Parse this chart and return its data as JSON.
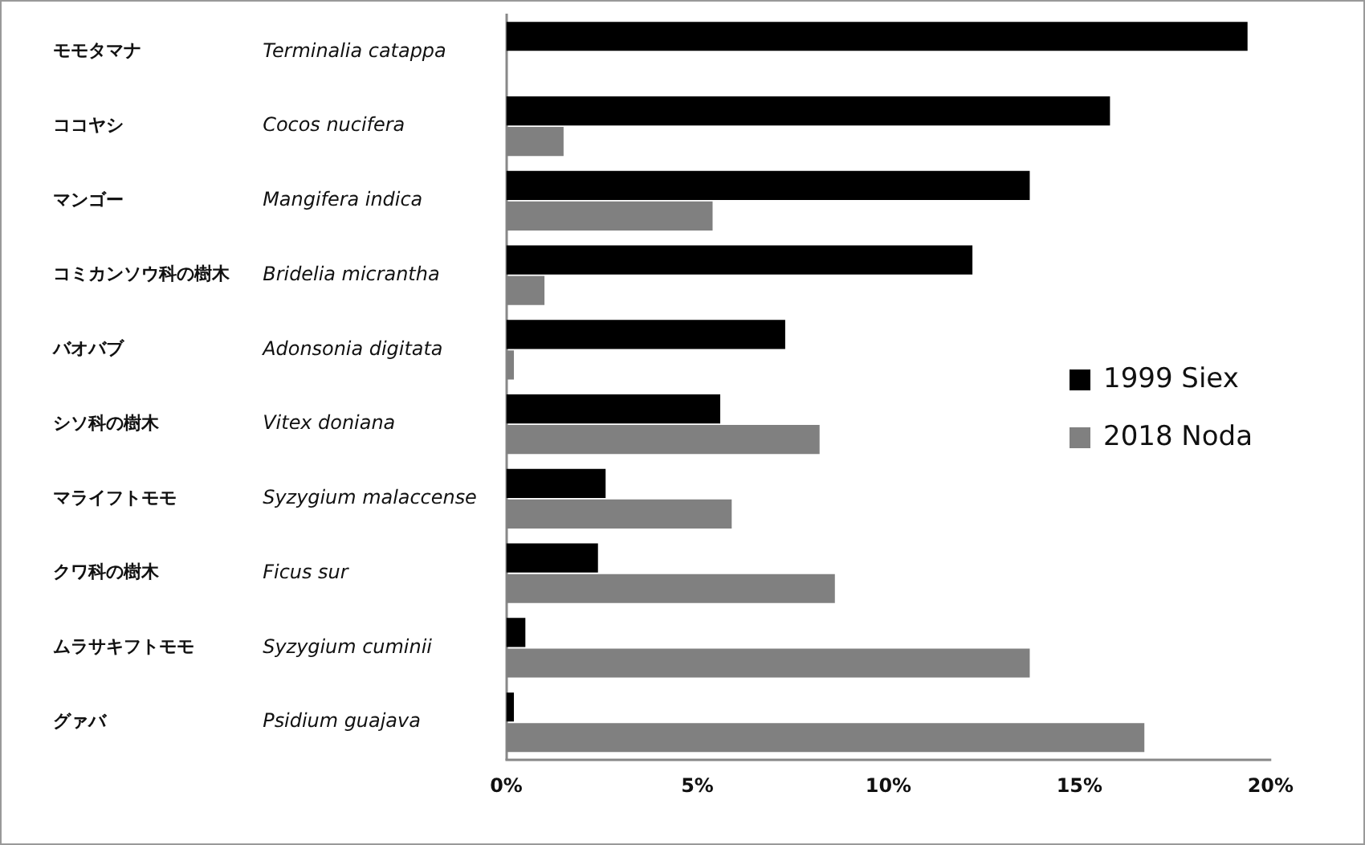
{
  "chart_data": {
    "type": "bar",
    "orientation": "horizontal",
    "categories": [
      "モモタマナ Terminalia catappa",
      "ココヤシ Cocos nucifera",
      "マンゴー Mangifera indica",
      "コミカンソウ科の樹木 Bridelia micrantha",
      "バオバブ Adonsonia digitata",
      "シソ科の樹木 Vitex doniana",
      "マライフトモモ Syzygium malaccense",
      "クワ科の樹木 Ficus sur",
      "ムラサキフトモモ Syzygium cuminii",
      "グァバ Psidium guajava"
    ],
    "series": [
      {
        "name": "1999 Siex",
        "color": "#000000",
        "values": [
          19.4,
          15.8,
          13.7,
          12.2,
          7.3,
          5.6,
          2.6,
          2.4,
          0.5,
          0.2
        ]
      },
      {
        "name": "2018 Noda",
        "color": "#808080",
        "values": [
          null,
          1.5,
          5.4,
          1.0,
          0.2,
          8.2,
          5.9,
          8.6,
          13.7,
          16.7
        ]
      }
    ],
    "xlim": [
      0,
      20
    ],
    "xticks": [
      {
        "value": 0,
        "label": "0%"
      },
      {
        "value": 5,
        "label": "5%"
      },
      {
        "value": 10,
        "label": "10%"
      },
      {
        "value": 15,
        "label": "15%"
      },
      {
        "value": 20,
        "label": "20%"
      }
    ],
    "grid": false,
    "legend": "right"
  }
}
